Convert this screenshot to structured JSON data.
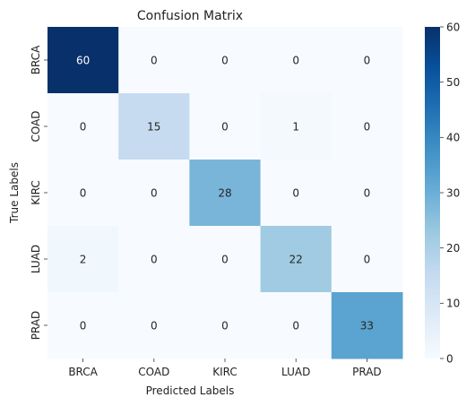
{
  "chart_data": {
    "type": "heatmap",
    "title": "Confusion Matrix",
    "xlabel": "Predicted Labels",
    "ylabel": "True Labels",
    "x_categories": [
      "BRCA",
      "COAD",
      "KIRC",
      "LUAD",
      "PRAD"
    ],
    "y_categories": [
      "BRCA",
      "COAD",
      "KIRC",
      "LUAD",
      "PRAD"
    ],
    "values": [
      [
        60,
        0,
        0,
        0,
        0
      ],
      [
        0,
        15,
        0,
        1,
        0
      ],
      [
        0,
        0,
        28,
        0,
        0
      ],
      [
        2,
        0,
        0,
        22,
        0
      ],
      [
        0,
        0,
        0,
        0,
        33
      ]
    ],
    "colormap": "Blues",
    "vmin": 0,
    "vmax": 60,
    "colorbar_ticks": [
      0,
      10,
      20,
      30,
      40,
      50,
      60
    ]
  }
}
